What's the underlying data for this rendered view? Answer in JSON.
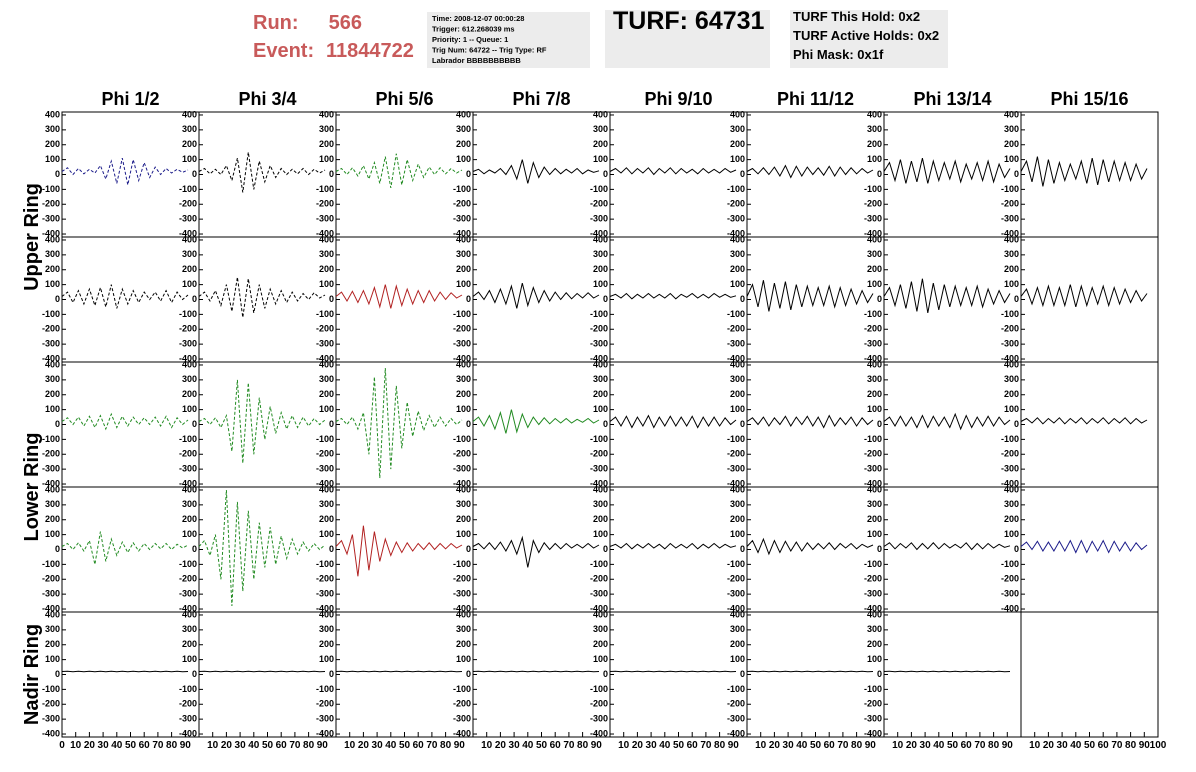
{
  "header": {
    "run_label": "Run:",
    "run": "566",
    "event_label": "Event:",
    "event": "11844722",
    "info": [
      "Time: 2008-12-07 00:00:28",
      "Trigger: 612.268039 ms",
      "Priority: 1 -- Queue: 1",
      "Trig Num: 64722 -- Trig Type: RF",
      "Labrador BBBBBBBBBB"
    ],
    "turf": "TURF: 64731",
    "turf_info": [
      "TURF This Hold: 0x2",
      "TURF Active Holds: 0x2",
      "Phi Mask: 0x1f"
    ]
  },
  "columns": [
    "Phi 1/2",
    "Phi 3/4",
    "Phi 5/6",
    "Phi 7/8",
    "Phi 9/10",
    "Phi 11/12",
    "Phi 13/14",
    "Phi 15/16"
  ],
  "rings": [
    "Upper Ring",
    "Lower Ring",
    "Nadir Ring"
  ],
  "chart_data": {
    "type": "line",
    "x": [
      0,
      4,
      8,
      12,
      16,
      20,
      24,
      28,
      32,
      36,
      40,
      44,
      48,
      52,
      56,
      60,
      64,
      68,
      72,
      76,
      80,
      84,
      88,
      92
    ],
    "xlim": [
      0,
      100
    ],
    "xticks": [
      0,
      10,
      20,
      30,
      40,
      50,
      60,
      70,
      80,
      90,
      100
    ],
    "ylim": [
      -420,
      420
    ],
    "yticks": [
      400,
      300,
      200,
      100,
      0,
      -100,
      -200,
      -300,
      -400
    ],
    "series": [
      {
        "color": "#1c1c8a",
        "dashed": true,
        "values": [
          20,
          45,
          0,
          40,
          5,
          35,
          10,
          60,
          -30,
          90,
          -60,
          110,
          -70,
          100,
          -40,
          80,
          -20,
          50,
          0,
          40,
          10,
          35,
          15,
          30
        ]
      },
      {
        "color": "#000000",
        "dashed": true,
        "values": [
          20,
          40,
          5,
          35,
          0,
          60,
          -40,
          110,
          -120,
          150,
          -100,
          90,
          -50,
          60,
          -20,
          40,
          0,
          35,
          5,
          40,
          0,
          35,
          10,
          30
        ]
      },
      {
        "color": "#228b22",
        "dashed": true,
        "values": [
          20,
          40,
          0,
          45,
          -10,
          60,
          -30,
          80,
          -60,
          120,
          -90,
          140,
          -70,
          100,
          -40,
          70,
          -20,
          50,
          0,
          45,
          5,
          40,
          10,
          30
        ]
      },
      {
        "color": "#000000",
        "dashed": false,
        "values": [
          20,
          35,
          5,
          30,
          10,
          40,
          0,
          60,
          -30,
          100,
          -60,
          80,
          -20,
          50,
          0,
          40,
          5,
          35,
          10,
          40,
          5,
          30,
          15,
          25
        ]
      },
      {
        "color": "#000000",
        "dashed": false,
        "values": [
          20,
          40,
          10,
          45,
          5,
          40,
          10,
          45,
          0,
          40,
          10,
          45,
          5,
          40,
          10,
          35,
          5,
          40,
          10,
          35,
          10,
          40,
          15,
          30
        ]
      },
      {
        "color": "#000000",
        "dashed": false,
        "values": [
          20,
          40,
          5,
          45,
          0,
          50,
          -10,
          60,
          -20,
          55,
          -10,
          50,
          0,
          45,
          -5,
          55,
          -10,
          50,
          0,
          45,
          5,
          40,
          10,
          30
        ]
      },
      {
        "color": "#000000",
        "dashed": false,
        "values": [
          20,
          80,
          -40,
          100,
          -60,
          90,
          -50,
          110,
          -60,
          90,
          -40,
          80,
          -30,
          90,
          -50,
          70,
          -30,
          80,
          -40,
          90,
          -50,
          70,
          -20,
          40
        ]
      },
      {
        "color": "#000000",
        "dashed": false,
        "values": [
          20,
          90,
          -50,
          120,
          -80,
          100,
          -60,
          80,
          -40,
          70,
          -30,
          90,
          -60,
          110,
          -70,
          100,
          -50,
          90,
          -40,
          80,
          -40,
          70,
          -30,
          40
        ]
      },
      {
        "color": "#000000",
        "dashed": true,
        "values": [
          20,
          50,
          -20,
          60,
          -30,
          70,
          -40,
          80,
          -50,
          100,
          -60,
          70,
          -30,
          60,
          -20,
          50,
          0,
          50,
          -10,
          60,
          -20,
          50,
          0,
          30
        ]
      },
      {
        "color": "#000000",
        "dashed": true,
        "values": [
          20,
          50,
          -10,
          60,
          -40,
          100,
          -80,
          150,
          -120,
          140,
          -90,
          100,
          -60,
          70,
          -30,
          60,
          -20,
          50,
          -10,
          40,
          0,
          45,
          10,
          30
        ]
      },
      {
        "color": "#b22222",
        "dashed": false,
        "values": [
          20,
          50,
          -10,
          55,
          -20,
          60,
          -30,
          80,
          -50,
          100,
          -60,
          90,
          -40,
          70,
          -30,
          60,
          -20,
          60,
          -10,
          50,
          0,
          45,
          10,
          30
        ]
      },
      {
        "color": "#000000",
        "dashed": false,
        "values": [
          20,
          50,
          0,
          60,
          -20,
          70,
          -30,
          90,
          -60,
          110,
          -40,
          80,
          -20,
          60,
          -10,
          50,
          0,
          45,
          5,
          40,
          10,
          45,
          10,
          30
        ]
      },
      {
        "color": "#000000",
        "dashed": false,
        "values": [
          20,
          35,
          10,
          40,
          5,
          35,
          10,
          40,
          10,
          35,
          10,
          40,
          5,
          35,
          15,
          40,
          10,
          35,
          10,
          40,
          15,
          35,
          15,
          25
        ]
      },
      {
        "color": "#000000",
        "dashed": false,
        "values": [
          20,
          100,
          -50,
          130,
          -80,
          110,
          -60,
          120,
          -70,
          100,
          -50,
          90,
          -40,
          80,
          -40,
          90,
          -50,
          80,
          -40,
          70,
          -30,
          60,
          -20,
          40
        ]
      },
      {
        "color": "#000000",
        "dashed": false,
        "values": [
          20,
          80,
          -40,
          100,
          -60,
          120,
          -80,
          140,
          -90,
          110,
          -70,
          100,
          -50,
          90,
          -40,
          80,
          -40,
          90,
          -50,
          70,
          -30,
          60,
          -20,
          40
        ]
      },
      {
        "color": "#000000",
        "dashed": false,
        "values": [
          20,
          70,
          -30,
          80,
          -40,
          90,
          -40,
          80,
          -40,
          100,
          -50,
          90,
          -40,
          80,
          -30,
          90,
          -40,
          80,
          -30,
          70,
          -20,
          60,
          -10,
          40
        ]
      },
      {
        "color": "#228b22",
        "dashed": true,
        "values": [
          20,
          45,
          0,
          50,
          -10,
          55,
          -20,
          60,
          -30,
          70,
          -20,
          55,
          -10,
          50,
          0,
          45,
          0,
          50,
          -10,
          55,
          -20,
          45,
          0,
          30
        ]
      },
      {
        "color": "#228b22",
        "dashed": true,
        "values": [
          20,
          40,
          0,
          45,
          -20,
          60,
          -180,
          300,
          -260,
          280,
          -200,
          180,
          -100,
          120,
          -60,
          80,
          -30,
          60,
          -20,
          50,
          -10,
          40,
          0,
          30
        ]
      },
      {
        "color": "#228b22",
        "dashed": true,
        "values": [
          20,
          40,
          0,
          50,
          -30,
          80,
          -200,
          320,
          -360,
          380,
          -300,
          260,
          -160,
          150,
          -80,
          90,
          -40,
          60,
          -20,
          50,
          -10,
          40,
          0,
          30
        ]
      },
      {
        "color": "#228b22",
        "dashed": false,
        "values": [
          20,
          50,
          -10,
          60,
          -30,
          80,
          -60,
          100,
          -50,
          70,
          -20,
          50,
          0,
          45,
          5,
          40,
          10,
          40,
          10,
          35,
          15,
          40,
          10,
          30
        ]
      },
      {
        "color": "#000000",
        "dashed": false,
        "values": [
          20,
          50,
          -10,
          55,
          -20,
          50,
          -10,
          60,
          -20,
          50,
          -10,
          55,
          -10,
          50,
          -10,
          55,
          -20,
          50,
          -10,
          50,
          -10,
          45,
          0,
          30
        ]
      },
      {
        "color": "#000000",
        "dashed": false,
        "values": [
          20,
          45,
          0,
          50,
          -10,
          45,
          0,
          55,
          -10,
          50,
          0,
          55,
          -10,
          50,
          -20,
          60,
          -10,
          45,
          0,
          50,
          -10,
          45,
          0,
          30
        ]
      },
      {
        "color": "#000000",
        "dashed": false,
        "values": [
          20,
          50,
          -10,
          55,
          -10,
          50,
          -20,
          60,
          -20,
          55,
          -10,
          50,
          -20,
          70,
          -30,
          60,
          -20,
          50,
          -10,
          55,
          -10,
          50,
          0,
          30
        ]
      },
      {
        "color": "#000000",
        "dashed": false,
        "values": [
          20,
          40,
          10,
          45,
          5,
          40,
          10,
          45,
          5,
          40,
          10,
          45,
          5,
          40,
          10,
          45,
          5,
          40,
          10,
          45,
          5,
          40,
          10,
          30
        ]
      },
      {
        "color": "#228b22",
        "dashed": true,
        "values": [
          20,
          40,
          0,
          45,
          -10,
          60,
          -100,
          120,
          -80,
          70,
          -40,
          50,
          -20,
          45,
          -10,
          40,
          0,
          40,
          5,
          40,
          0,
          35,
          10,
          30
        ]
      },
      {
        "color": "#228b22",
        "dashed": true,
        "values": [
          20,
          60,
          -40,
          100,
          -200,
          400,
          -380,
          320,
          -280,
          260,
          -200,
          180,
          -120,
          150,
          -100,
          90,
          -60,
          70,
          -30,
          50,
          -10,
          40,
          0,
          30
        ]
      },
      {
        "color": "#b22222",
        "dashed": false,
        "values": [
          20,
          60,
          -30,
          100,
          -180,
          160,
          -140,
          120,
          -80,
          70,
          -40,
          50,
          -20,
          45,
          -10,
          40,
          0,
          45,
          0,
          40,
          5,
          40,
          10,
          30
        ]
      },
      {
        "color": "#000000",
        "dashed": false,
        "values": [
          20,
          40,
          5,
          45,
          0,
          50,
          -10,
          60,
          -30,
          80,
          -120,
          60,
          -20,
          45,
          0,
          40,
          5,
          40,
          10,
          35,
          10,
          40,
          10,
          30
        ]
      },
      {
        "color": "#000000",
        "dashed": false,
        "values": [
          20,
          35,
          10,
          40,
          5,
          35,
          10,
          40,
          10,
          35,
          5,
          40,
          10,
          35,
          10,
          40,
          5,
          35,
          10,
          40,
          10,
          35,
          15,
          25
        ]
      },
      {
        "color": "#000000",
        "dashed": false,
        "values": [
          20,
          60,
          -20,
          70,
          -30,
          60,
          -20,
          55,
          -10,
          50,
          -10,
          45,
          0,
          40,
          5,
          45,
          0,
          40,
          10,
          40,
          5,
          35,
          15,
          30
        ]
      },
      {
        "color": "#000000",
        "dashed": false,
        "values": [
          20,
          45,
          5,
          40,
          10,
          45,
          0,
          40,
          5,
          45,
          5,
          40,
          10,
          35,
          10,
          45,
          0,
          40,
          5,
          40,
          10,
          35,
          15,
          25
        ]
      },
      {
        "color": "#1c1c8a",
        "dashed": false,
        "values": [
          20,
          50,
          0,
          55,
          -10,
          50,
          -10,
          55,
          -10,
          60,
          -20,
          60,
          -20,
          55,
          -10,
          60,
          -20,
          55,
          -10,
          50,
          -10,
          45,
          0,
          30
        ]
      },
      {
        "color": "#000000",
        "dashed": false,
        "values": [
          20,
          22,
          18,
          22,
          18,
          22,
          18,
          22,
          18,
          22,
          18,
          22,
          18,
          22,
          18,
          22,
          18,
          22,
          18,
          22,
          18,
          22,
          18,
          20
        ]
      },
      {
        "color": "#000000",
        "dashed": false,
        "values": [
          20,
          22,
          18,
          22,
          18,
          22,
          18,
          22,
          18,
          22,
          18,
          22,
          18,
          22,
          18,
          22,
          18,
          22,
          18,
          22,
          18,
          22,
          18,
          20
        ]
      },
      {
        "color": "#000000",
        "dashed": false,
        "values": [
          20,
          22,
          18,
          22,
          18,
          22,
          18,
          22,
          18,
          22,
          18,
          22,
          18,
          22,
          18,
          22,
          18,
          22,
          18,
          22,
          18,
          22,
          18,
          20
        ]
      },
      {
        "color": "#000000",
        "dashed": false,
        "values": [
          20,
          22,
          18,
          22,
          18,
          22,
          18,
          22,
          18,
          22,
          18,
          22,
          18,
          22,
          18,
          22,
          18,
          22,
          18,
          22,
          18,
          22,
          18,
          20
        ]
      },
      {
        "color": "#000000",
        "dashed": false,
        "values": [
          20,
          22,
          18,
          22,
          18,
          22,
          18,
          22,
          18,
          22,
          18,
          22,
          18,
          22,
          18,
          22,
          18,
          22,
          18,
          22,
          18,
          22,
          18,
          20
        ]
      },
      {
        "color": "#000000",
        "dashed": false,
        "values": [
          20,
          22,
          18,
          22,
          18,
          22,
          18,
          22,
          18,
          22,
          18,
          22,
          18,
          22,
          18,
          22,
          18,
          22,
          18,
          22,
          18,
          22,
          18,
          20
        ]
      },
      {
        "color": "#000000",
        "dashed": false,
        "values": [
          20,
          22,
          18,
          22,
          18,
          22,
          18,
          22,
          18,
          22,
          18,
          22,
          18,
          22,
          18,
          22,
          18,
          22,
          18,
          22,
          18,
          22,
          18,
          20
        ]
      }
    ]
  }
}
